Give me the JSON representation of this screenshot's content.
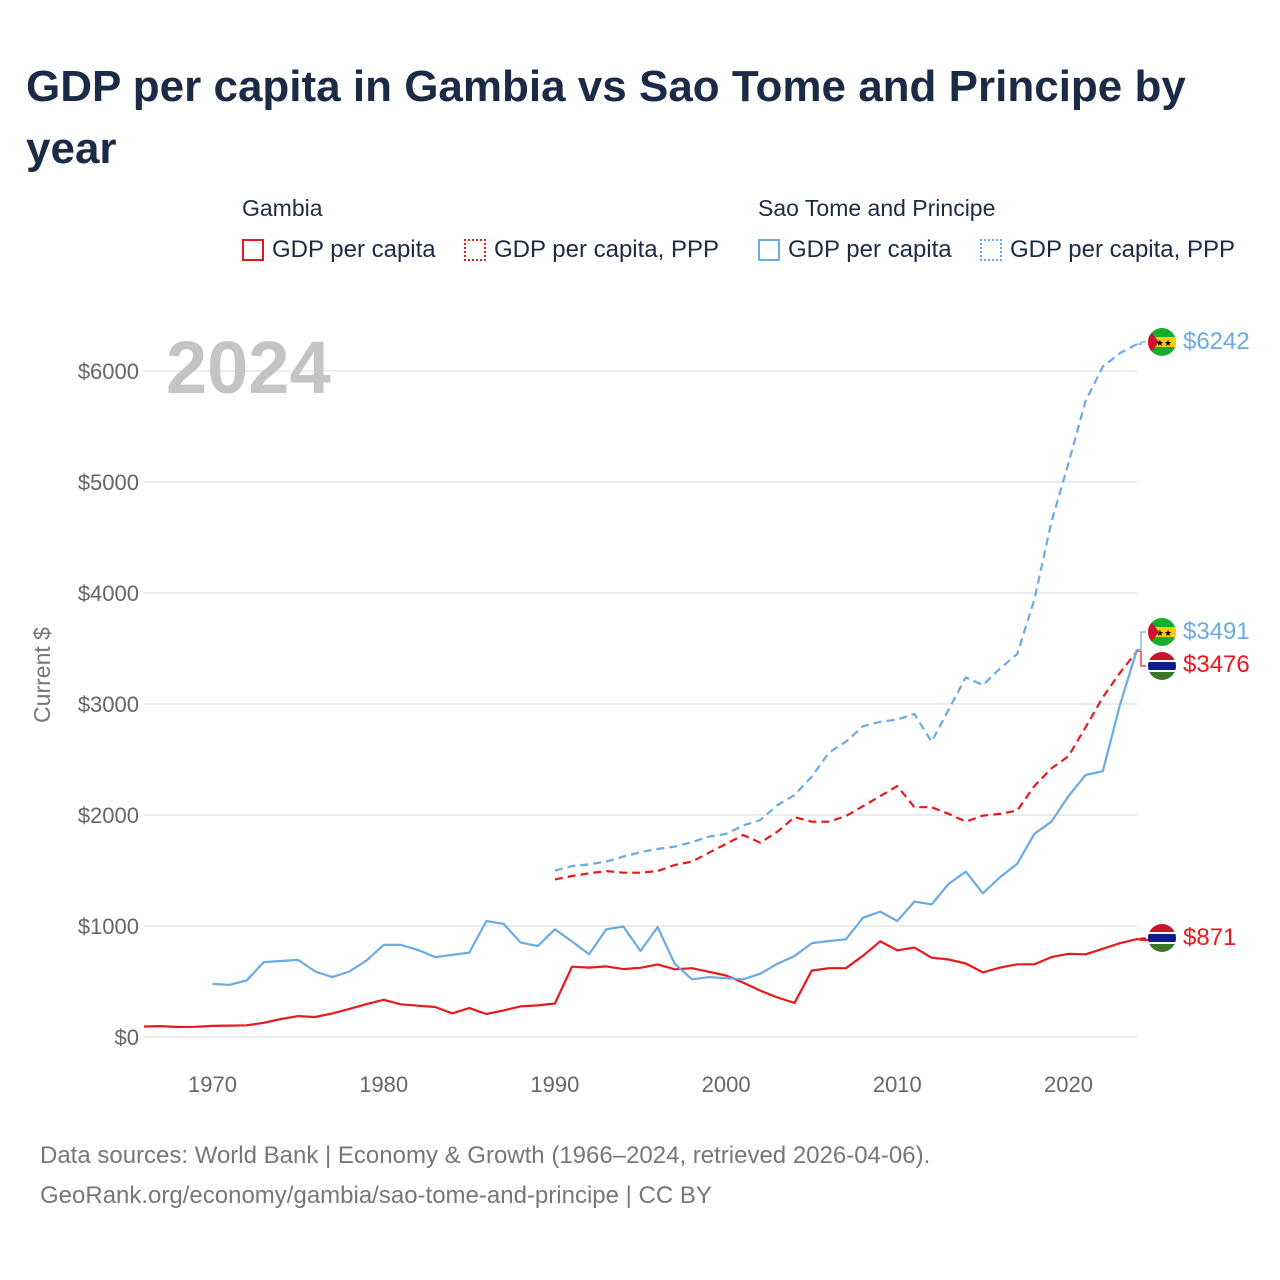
{
  "title": "GDP per capita in Gambia vs Sao Tome and Principe by year",
  "legend": {
    "groups": [
      {
        "name": "Gambia",
        "items": [
          "GDP per capita",
          "GDP per capita, PPP"
        ],
        "color": "#e8191a"
      },
      {
        "name": "Sao Tome and Principe",
        "items": [
          "GDP per capita",
          "GDP per capita, PPP"
        ],
        "color": "#6aaae5"
      }
    ]
  },
  "year_label": "2024",
  "footer": {
    "line1": "Data sources: World Bank | Economy & Growth (1966–2024, retrieved 2026-04-06).",
    "line2": "GeoRank.org/economy/gambia/sao-tome-and-principe | CC BY"
  },
  "chart_data": {
    "type": "line",
    "title": "GDP per capita in Gambia vs Sao Tome and Principe by year",
    "xlabel": "",
    "ylabel": "Current $",
    "xlim": [
      1966,
      2024
    ],
    "ylim": [
      0,
      6300
    ],
    "x_ticks": [
      1970,
      1980,
      1990,
      2000,
      2010,
      2020
    ],
    "y_ticks": [
      0,
      1000,
      2000,
      3000,
      4000,
      5000,
      6000
    ],
    "y_tick_labels": [
      "$0",
      "$1000",
      "$2000",
      "$3000",
      "$4000",
      "$5000",
      "$6000"
    ],
    "series": [
      {
        "name": "Gambia GDP per capita",
        "color": "#e8191a",
        "style": "solid",
        "start": 1966,
        "end_label": "$871",
        "values": [
          95,
          98,
          90,
          92,
          100,
          103,
          105,
          128,
          162,
          188,
          180,
          213,
          253,
          296,
          335,
          295,
          282,
          270,
          213,
          260,
          207,
          240,
          277,
          285,
          302,
          633,
          625,
          636,
          612,
          623,
          654,
          610,
          620,
          587,
          554,
          490,
          418,
          356,
          307,
          598,
          620,
          620,
          732,
          862,
          781,
          805,
          714,
          698,
          662,
          582,
          625,
          655,
          655,
          720,
          750,
          745,
          795,
          845,
          882,
          871
        ]
      },
      {
        "name": "Gambia GDP per capita, PPP",
        "color": "#e8191a",
        "style": "dashed",
        "start": 1990,
        "end_label": "$3476",
        "values": [
          1420,
          1450,
          1475,
          1495,
          1480,
          1480,
          1495,
          1550,
          1580,
          1660,
          1740,
          1820,
          1750,
          1850,
          1980,
          1940,
          1940,
          1990,
          2080,
          2170,
          2260,
          2070,
          2070,
          2010,
          1940,
          1995,
          2010,
          2040,
          2260,
          2420,
          2530,
          2790,
          3060,
          3280,
          3476
        ]
      },
      {
        "name": "Sao Tome and Principe GDP per capita",
        "color": "#6aaae5",
        "style": "solid",
        "start": 1970,
        "end_label": "$3491",
        "values": [
          478,
          470,
          510,
          675,
          685,
          695,
          590,
          540,
          590,
          690,
          830,
          830,
          785,
          720,
          740,
          760,
          1045,
          1020,
          850,
          820,
          970,
          860,
          745,
          970,
          995,
          775,
          990,
          660,
          520,
          540,
          530,
          520,
          570,
          660,
          730,
          845,
          865,
          880,
          1075,
          1130,
          1045,
          1220,
          1195,
          1380,
          1490,
          1295,
          1440,
          1560,
          1830,
          1940,
          2170,
          2360,
          2395,
          2990,
          3491
        ]
      },
      {
        "name": "Sao Tome and Principe GDP per capita, PPP",
        "color": "#6aaae5",
        "style": "dashed",
        "start": 1990,
        "end_label": "$6242",
        "values": [
          1500,
          1540,
          1555,
          1580,
          1625,
          1665,
          1695,
          1715,
          1755,
          1805,
          1830,
          1905,
          1955,
          2090,
          2180,
          2345,
          2560,
          2660,
          2800,
          2840,
          2860,
          2910,
          2660,
          2950,
          3240,
          3170,
          3320,
          3450,
          3940,
          4640,
          5170,
          5730,
          6040,
          6160,
          6242
        ]
      }
    ]
  }
}
